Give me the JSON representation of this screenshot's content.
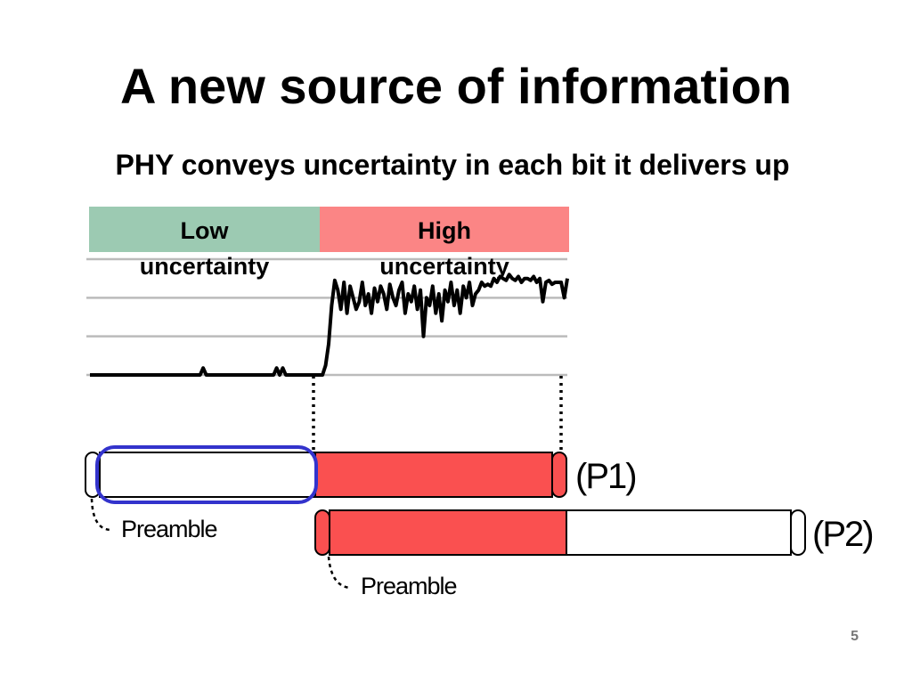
{
  "slide": {
    "title": "A new source of information",
    "subtitle": "PHY conveys uncertainty in each bit it delivers up",
    "page_number": "5"
  },
  "uncertainty_bands": {
    "low": {
      "line1": "Low",
      "line2": "uncertainty"
    },
    "high": {
      "line1": "High",
      "line2": "uncertainty"
    }
  },
  "packets": {
    "p1_label": "(P1)",
    "p2_label": "(P2)",
    "preamble_label_1": "Preamble",
    "preamble_label_2": "Preamble"
  },
  "colors": {
    "low_band": "#9ccab2",
    "high_band": "#fb8585",
    "packet_red": "#fa5050",
    "highlight_blue": "#3333cc"
  },
  "chart_data": {
    "type": "line",
    "title": "",
    "xlabel": "",
    "ylabel": "",
    "ylim": [
      0,
      3
    ],
    "grid": true,
    "series": [
      {
        "values": [
          0,
          0,
          0,
          0,
          0,
          0,
          0,
          0,
          0,
          0,
          0,
          0,
          0,
          0,
          0,
          0,
          0,
          0,
          0,
          0,
          0,
          0,
          0,
          0,
          0,
          0,
          0,
          0,
          0,
          0,
          0,
          0,
          0,
          0,
          0,
          0,
          0,
          0.18,
          0,
          0,
          0,
          0,
          0,
          0,
          0,
          0,
          0,
          0,
          0,
          0,
          0,
          0,
          0,
          0,
          0,
          0,
          0,
          0,
          0,
          0,
          0,
          0.18,
          0,
          0.18,
          0,
          0,
          0,
          0,
          0,
          0,
          0,
          0,
          0,
          0,
          0,
          0,
          0,
          0.25,
          0.8,
          1.8,
          2.45,
          2.2,
          1.7,
          2.4,
          1.6,
          2.3,
          2.0,
          1.7,
          1.9,
          2.4,
          1.8,
          2.1,
          1.6,
          2.25,
          1.9,
          2.3,
          2.1,
          1.7,
          2.35,
          2.0,
          1.8,
          2.2,
          2.4,
          1.6,
          2.1,
          1.9,
          2.3,
          1.7,
          2.2,
          1.0,
          2.0,
          1.8,
          2.3,
          1.6,
          2.1,
          1.4,
          2.2,
          1.9,
          2.4,
          1.8,
          2.2,
          1.6,
          2.3,
          2.0,
          2.4,
          1.8,
          2.1,
          2.2,
          2.4,
          2.3,
          2.35,
          2.3,
          2.5,
          2.4,
          2.55,
          2.5,
          2.45,
          2.6,
          2.5,
          2.45,
          2.55,
          2.4,
          2.5,
          2.5,
          2.45,
          2.55,
          2.4,
          2.5,
          1.9,
          2.4,
          2.45,
          2.35,
          2.4,
          2.4,
          2.4,
          2.0,
          2.5
        ]
      }
    ]
  }
}
